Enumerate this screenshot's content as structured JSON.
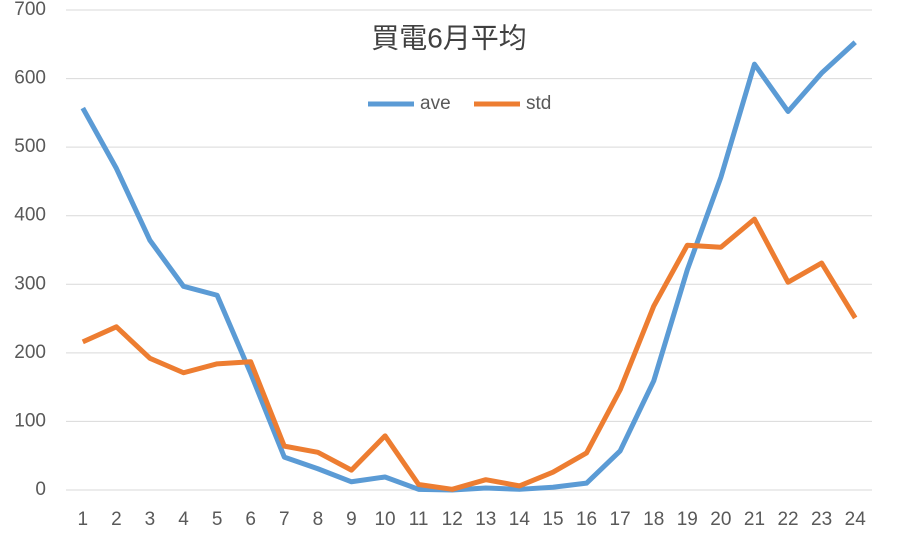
{
  "chart_data": {
    "type": "line",
    "title": "買電6月平均",
    "categories": [
      "1",
      "2",
      "3",
      "4",
      "5",
      "6",
      "7",
      "8",
      "9",
      "10",
      "11",
      "12",
      "13",
      "14",
      "15",
      "16",
      "17",
      "18",
      "19",
      "20",
      "21",
      "22",
      "23",
      "24"
    ],
    "series": [
      {
        "name": "ave",
        "color": "#5b9bd5",
        "values": [
          557,
          469,
          364,
          297,
          284,
          170,
          48,
          31,
          12,
          19,
          1,
          0,
          3,
          1,
          4,
          10,
          57,
          159,
          321,
          456,
          621,
          552,
          608,
          653
        ]
      },
      {
        "name": "std",
        "color": "#ed7d31",
        "values": [
          216,
          238,
          192,
          171,
          184,
          187,
          64,
          55,
          29,
          79,
          8,
          1,
          15,
          6,
          26,
          54,
          146,
          268,
          357,
          354,
          395,
          303,
          331,
          251
        ]
      }
    ],
    "ylim": [
      0,
      700
    ],
    "yticks": [
      0,
      100,
      200,
      300,
      400,
      500,
      600,
      700
    ],
    "grid": true,
    "legend": "top"
  }
}
